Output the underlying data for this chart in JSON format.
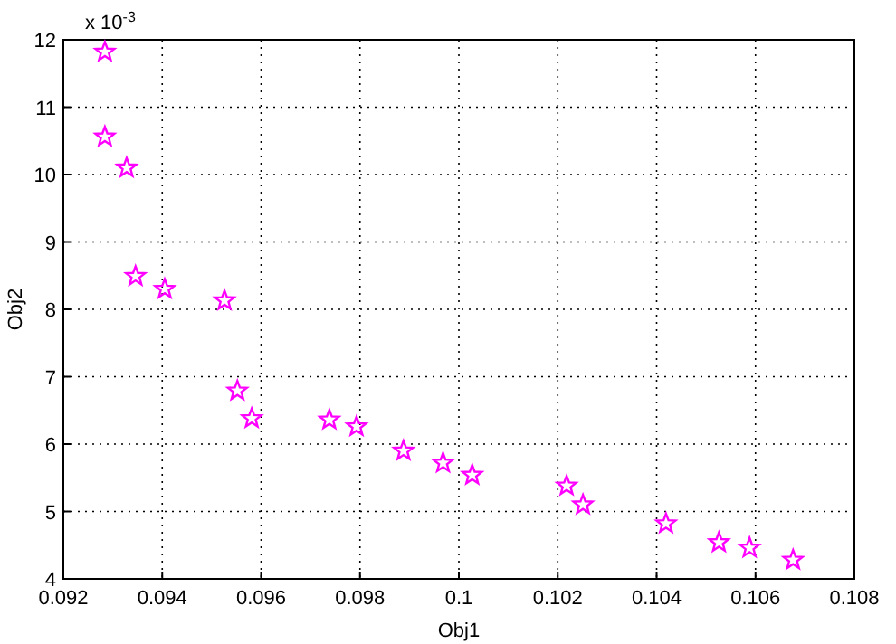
{
  "chart_data": {
    "type": "scatter",
    "xlabel": "Obj1",
    "ylabel": "Obj2",
    "annotations": [
      "x 10$^{-3}$"
    ],
    "x": [
      0.09284,
      0.09284,
      0.09328,
      0.09346,
      0.09405,
      0.09526,
      0.09552,
      0.09581,
      0.09738,
      0.09793,
      0.09888,
      0.09968,
      0.10027,
      0.10218,
      0.10251,
      0.10419,
      0.10526,
      0.10588,
      0.10676
    ],
    "series": [
      {
        "color": "#ff00ff",
        "values": [
          11.82,
          10.56,
          10.1,
          8.49,
          8.3,
          8.13,
          6.79,
          6.38,
          6.36,
          6.26,
          5.9,
          5.72,
          5.54,
          5.38,
          5.1,
          4.82,
          4.54,
          4.46,
          4.28
        ]
      }
    ],
    "xlim": [
      0.092,
      0.108
    ],
    "xticks": [
      0.092,
      0.094,
      0.096,
      0.098,
      {
        "value": 0.1,
        "label": "0.1"
      },
      0.102,
      0.104,
      0.106,
      0.108
    ],
    "ylim": [
      4,
      12
    ],
    "yticks": [
      4,
      5,
      6,
      7,
      8,
      9,
      10,
      11,
      12
    ],
    "grid": true,
    "marker": "star"
  }
}
